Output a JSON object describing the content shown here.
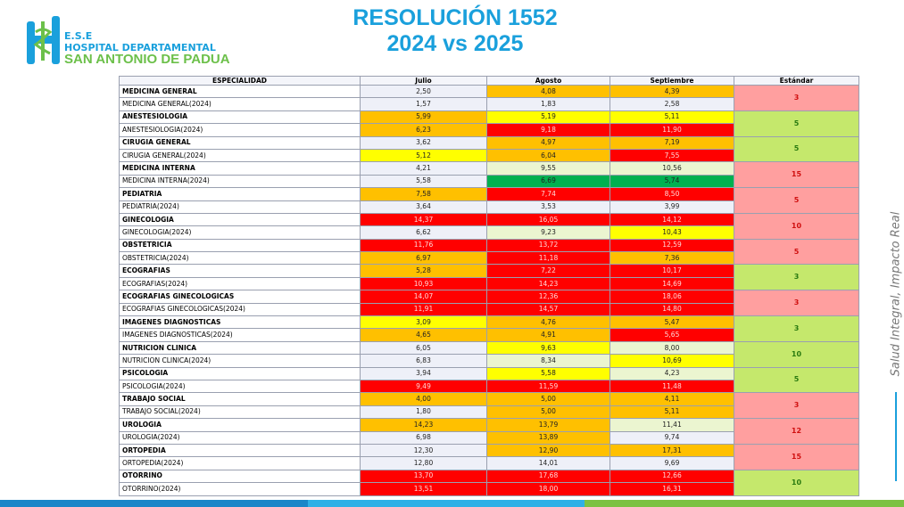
{
  "header": {
    "logo_top": "E.S.E",
    "logo_line1": "HOSPITAL DEPARTAMENTAL",
    "logo_line2": "SAN ANTONIO DE PADUA",
    "title_line1": "RESOLUCIÓN 1552",
    "title_line2": "2024 vs 2025"
  },
  "side_text": "Salud Integral, Impacto Real",
  "table": {
    "columns": [
      "ESPECIALIDAD",
      "Julio",
      "Agosto",
      "Septiembre",
      "Estándar"
    ],
    "groups": [
      {
        "standard": "3",
        "standard_color": "#ff9f9f",
        "rows": [
          {
            "label": "MEDICINA GENERAL",
            "cells": [
              "2,50",
              "4,08",
              "4,39"
            ],
            "colors": [
              "#eef0f8",
              "#ffc000",
              "#ffc000"
            ]
          },
          {
            "label": "MEDICINA GENERAL(2024)",
            "cells": [
              "1,57",
              "1,83",
              "2,58"
            ],
            "colors": [
              "#eef0f8",
              "#eef0f8",
              "#eef0f8"
            ]
          }
        ]
      },
      {
        "standard": "5",
        "standard_color": "#c5e86c",
        "rows": [
          {
            "label": "ANESTESIOLOGIA",
            "cells": [
              "5,99",
              "5,19",
              "5,11"
            ],
            "colors": [
              "#ffc000",
              "#ffff00",
              "#ffff00"
            ]
          },
          {
            "label": "ANESTESIOLOGIA(2024)",
            "cells": [
              "6,23",
              "9,18",
              "11,90"
            ],
            "colors": [
              "#ffc000",
              "#ff0000",
              "#ff0000"
            ]
          }
        ]
      },
      {
        "standard": "5",
        "standard_color": "#c5e86c",
        "rows": [
          {
            "label": "CIRUGIA GENERAL",
            "cells": [
              "3,62",
              "4,97",
              "7,19"
            ],
            "colors": [
              "#eef0f8",
              "#ffc000",
              "#ffc000"
            ]
          },
          {
            "label": "CIRUGIA GENERAL(2024)",
            "cells": [
              "5,12",
              "6,04",
              "7,55"
            ],
            "colors": [
              "#ffff00",
              "#ffc000",
              "#ff0000"
            ]
          }
        ]
      },
      {
        "standard": "15",
        "standard_color": "#ff9f9f",
        "rows": [
          {
            "label": "MEDICINA INTERNA",
            "cells": [
              "4,21",
              "9,55",
              "10,56"
            ],
            "colors": [
              "#eef0f8",
              "#ebf5d0",
              "#ebf5d0"
            ]
          },
          {
            "label": "MEDICINA INTERNA(2024)",
            "cells": [
              "5,58",
              "6,69",
              "5,74"
            ],
            "colors": [
              "#eef0f8",
              "#00b050",
              "#00b050"
            ]
          }
        ]
      },
      {
        "standard": "5",
        "standard_color": "#ff9f9f",
        "rows": [
          {
            "label": "PEDIATRIA",
            "cells": [
              "7,58",
              "7,74",
              "8,50"
            ],
            "colors": [
              "#ffc000",
              "#ff0000",
              "#ff0000"
            ]
          },
          {
            "label": "PEDIATRIA(2024)",
            "cells": [
              "3,64",
              "3,53",
              "3,99"
            ],
            "colors": [
              "#eef0f8",
              "#eef0f8",
              "#eef0f8"
            ]
          }
        ]
      },
      {
        "standard": "10",
        "standard_color": "#ff9f9f",
        "rows": [
          {
            "label": "GINECOLOGIA",
            "cells": [
              "14,37",
              "16,05",
              "14,12"
            ],
            "colors": [
              "#ff0000",
              "#ff0000",
              "#ff0000"
            ]
          },
          {
            "label": "GINECOLOGIA(2024)",
            "cells": [
              "6,62",
              "9,23",
              "10,43"
            ],
            "colors": [
              "#eef0f8",
              "#ebf5d0",
              "#ffff00"
            ]
          }
        ]
      },
      {
        "standard": "5",
        "standard_color": "#ff9f9f",
        "rows": [
          {
            "label": "OBSTETRICIA",
            "cells": [
              "11,76",
              "13,72",
              "12,59"
            ],
            "colors": [
              "#ff0000",
              "#ff0000",
              "#ff0000"
            ]
          },
          {
            "label": "OBSTETRICIA(2024)",
            "cells": [
              "6,97",
              "11,18",
              "7,36"
            ],
            "colors": [
              "#ffc000",
              "#ff0000",
              "#ffc000"
            ]
          }
        ]
      },
      {
        "standard": "3",
        "standard_color": "#c5e86c",
        "rows": [
          {
            "label": "ECOGRAFIAS",
            "cells": [
              "5,28",
              "7,22",
              "10,17"
            ],
            "colors": [
              "#ffc000",
              "#ff0000",
              "#ff0000"
            ]
          },
          {
            "label": "ECOGRAFIAS(2024)",
            "cells": [
              "10,93",
              "14,23",
              "14,69"
            ],
            "colors": [
              "#ff0000",
              "#ff0000",
              "#ff0000"
            ]
          }
        ]
      },
      {
        "standard": "3",
        "standard_color": "#ff9f9f",
        "rows": [
          {
            "label": "ECOGRAFIAS GINECOLOGICAS",
            "cells": [
              "14,07",
              "12,36",
              "18,06"
            ],
            "colors": [
              "#ff0000",
              "#ff0000",
              "#ff0000"
            ]
          },
          {
            "label": "ECOGRAFIAS GINECOLOGICAS(2024)",
            "cells": [
              "11,91",
              "14,57",
              "14,80"
            ],
            "colors": [
              "#ff0000",
              "#ff0000",
              "#ff0000"
            ]
          }
        ]
      },
      {
        "standard": "3",
        "standard_color": "#c5e86c",
        "rows": [
          {
            "label": "IMAGENES DIAGNOSTICAS",
            "cells": [
              "3,09",
              "4,76",
              "5,47"
            ],
            "colors": [
              "#ffff00",
              "#ffc000",
              "#ffc000"
            ]
          },
          {
            "label": "IMAGENES DIAGNOSTICAS(2024)",
            "cells": [
              "4,65",
              "4,91",
              "5,65"
            ],
            "colors": [
              "#ffc000",
              "#ffc000",
              "#ff0000"
            ]
          }
        ]
      },
      {
        "standard": "10",
        "standard_color": "#c5e86c",
        "rows": [
          {
            "label": "NUTRICION CLINICA",
            "cells": [
              "6,05",
              "9,63",
              "8,00"
            ],
            "colors": [
              "#eef0f8",
              "#ffff00",
              "#ebf5d0"
            ]
          },
          {
            "label": "NUTRICION CLINICA(2024)",
            "cells": [
              "6,83",
              "8,34",
              "10,69"
            ],
            "colors": [
              "#eef0f8",
              "#ebf5d0",
              "#ffff00"
            ]
          }
        ]
      },
      {
        "standard": "5",
        "standard_color": "#c5e86c",
        "rows": [
          {
            "label": "PSICOLOGIA",
            "cells": [
              "3,94",
              "5,58",
              "4,23"
            ],
            "colors": [
              "#eef0f8",
              "#ffff00",
              "#ebf5d0"
            ]
          },
          {
            "label": "PSICOLOGIA(2024)",
            "cells": [
              "9,49",
              "11,59",
              "11,48"
            ],
            "colors": [
              "#ff0000",
              "#ff0000",
              "#ff0000"
            ]
          }
        ]
      },
      {
        "standard": "3",
        "standard_color": "#ff9f9f",
        "rows": [
          {
            "label": "TRABAJO SOCIAL",
            "cells": [
              "4,00",
              "5,00",
              "4,11"
            ],
            "colors": [
              "#ffc000",
              "#ffc000",
              "#ffc000"
            ]
          },
          {
            "label": "TRABAJO SOCIAL(2024)",
            "cells": [
              "1,80",
              "5,00",
              "5,11"
            ],
            "colors": [
              "#eef0f8",
              "#ffc000",
              "#ffc000"
            ]
          }
        ]
      },
      {
        "standard": "12",
        "standard_color": "#ff9f9f",
        "rows": [
          {
            "label": "UROLOGIA",
            "cells": [
              "14,23",
              "13,79",
              "11,41"
            ],
            "colors": [
              "#ffc000",
              "#ffc000",
              "#ebf5d0"
            ]
          },
          {
            "label": "UROLOGIA(2024)",
            "cells": [
              "6,98",
              "13,89",
              "9,74"
            ],
            "colors": [
              "#eef0f8",
              "#ffc000",
              "#eef0f8"
            ]
          }
        ]
      },
      {
        "standard": "15",
        "standard_color": "#ff9f9f",
        "rows": [
          {
            "label": "ORTOPEDIA",
            "cells": [
              "12,30",
              "12,90",
              "17,31"
            ],
            "colors": [
              "#eef0f8",
              "#ffc000",
              "#ffc000"
            ]
          },
          {
            "label": "ORTOPEDIA(2024)",
            "cells": [
              "12,80",
              "14,01",
              "9,69"
            ],
            "colors": [
              "#eef0f8",
              "#eef0f8",
              "#eef0f8"
            ]
          }
        ]
      },
      {
        "standard": "10",
        "standard_color": "#c5e86c",
        "rows": [
          {
            "label": "OTORRINO",
            "cells": [
              "13,70",
              "17,68",
              "12,66"
            ],
            "colors": [
              "#ff0000",
              "#ff0000",
              "#ff0000"
            ]
          },
          {
            "label": "OTORRINO(2024)",
            "cells": [
              "13,51",
              "18,00",
              "16,31"
            ],
            "colors": [
              "#ff0000",
              "#ff0000",
              "#ff0000"
            ]
          }
        ]
      }
    ]
  }
}
